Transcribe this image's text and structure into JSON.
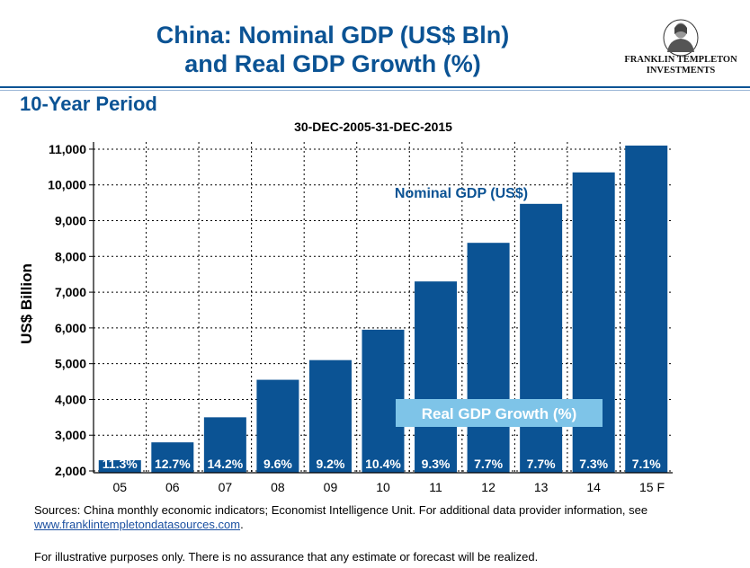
{
  "header": {
    "title_line1": "China: Nominal GDP (US$ Bln)",
    "title_line2": "and Real GDP Growth (%)",
    "logo_line1": "FRANKLIN TEMPLETON",
    "logo_line2": "INVESTMENTS"
  },
  "subheading": "10-Year Period",
  "period": "30-DEC-2005-31-DEC-2015",
  "chart_data": {
    "type": "bar",
    "categories": [
      "05",
      "06",
      "07",
      "08",
      "09",
      "10",
      "11",
      "12",
      "13",
      "14",
      "15"
    ],
    "values": [
      2300,
      2800,
      3500,
      4550,
      5100,
      5950,
      7300,
      8380,
      9470,
      10350,
      11100
    ],
    "growth_labels": [
      "11.3%",
      "12.7%",
      "14.2%",
      "9.6%",
      "9.2%",
      "10.4%",
      "9.3%",
      "7.7%",
      "7.7%",
      "7.3%",
      "7.1%"
    ],
    "forecast_marker": "F",
    "ylabel": "US$ Billion",
    "ylim": [
      1950,
      11200
    ],
    "yticks": [
      2000,
      3000,
      4000,
      5000,
      6000,
      7000,
      8000,
      9000,
      10000,
      11000
    ],
    "ytick_labels": [
      "2,000",
      "3,000",
      "4,000",
      "5,000",
      "6,000",
      "7,000",
      "8,000",
      "9,000",
      "10,000",
      "11,000"
    ],
    "annotation_nominal": "Nominal GDP (US$)",
    "annotation_real": "Real GDP Growth (%)",
    "grid": true,
    "colors": {
      "bar": "#0b5394",
      "label_box": "#7ec4e8",
      "annotation": "#0b5394"
    }
  },
  "footer": {
    "sources_text": "Sources: China monthly economic indicators; Economist Intelligence Unit. For additional data  provider information, see ",
    "sources_link": "www.franklintempletondatasources.com",
    "sources_end": ".",
    "disclaimer": "For  illustrative purposes only. There is no assurance that any estimate or forecast will be realized."
  }
}
